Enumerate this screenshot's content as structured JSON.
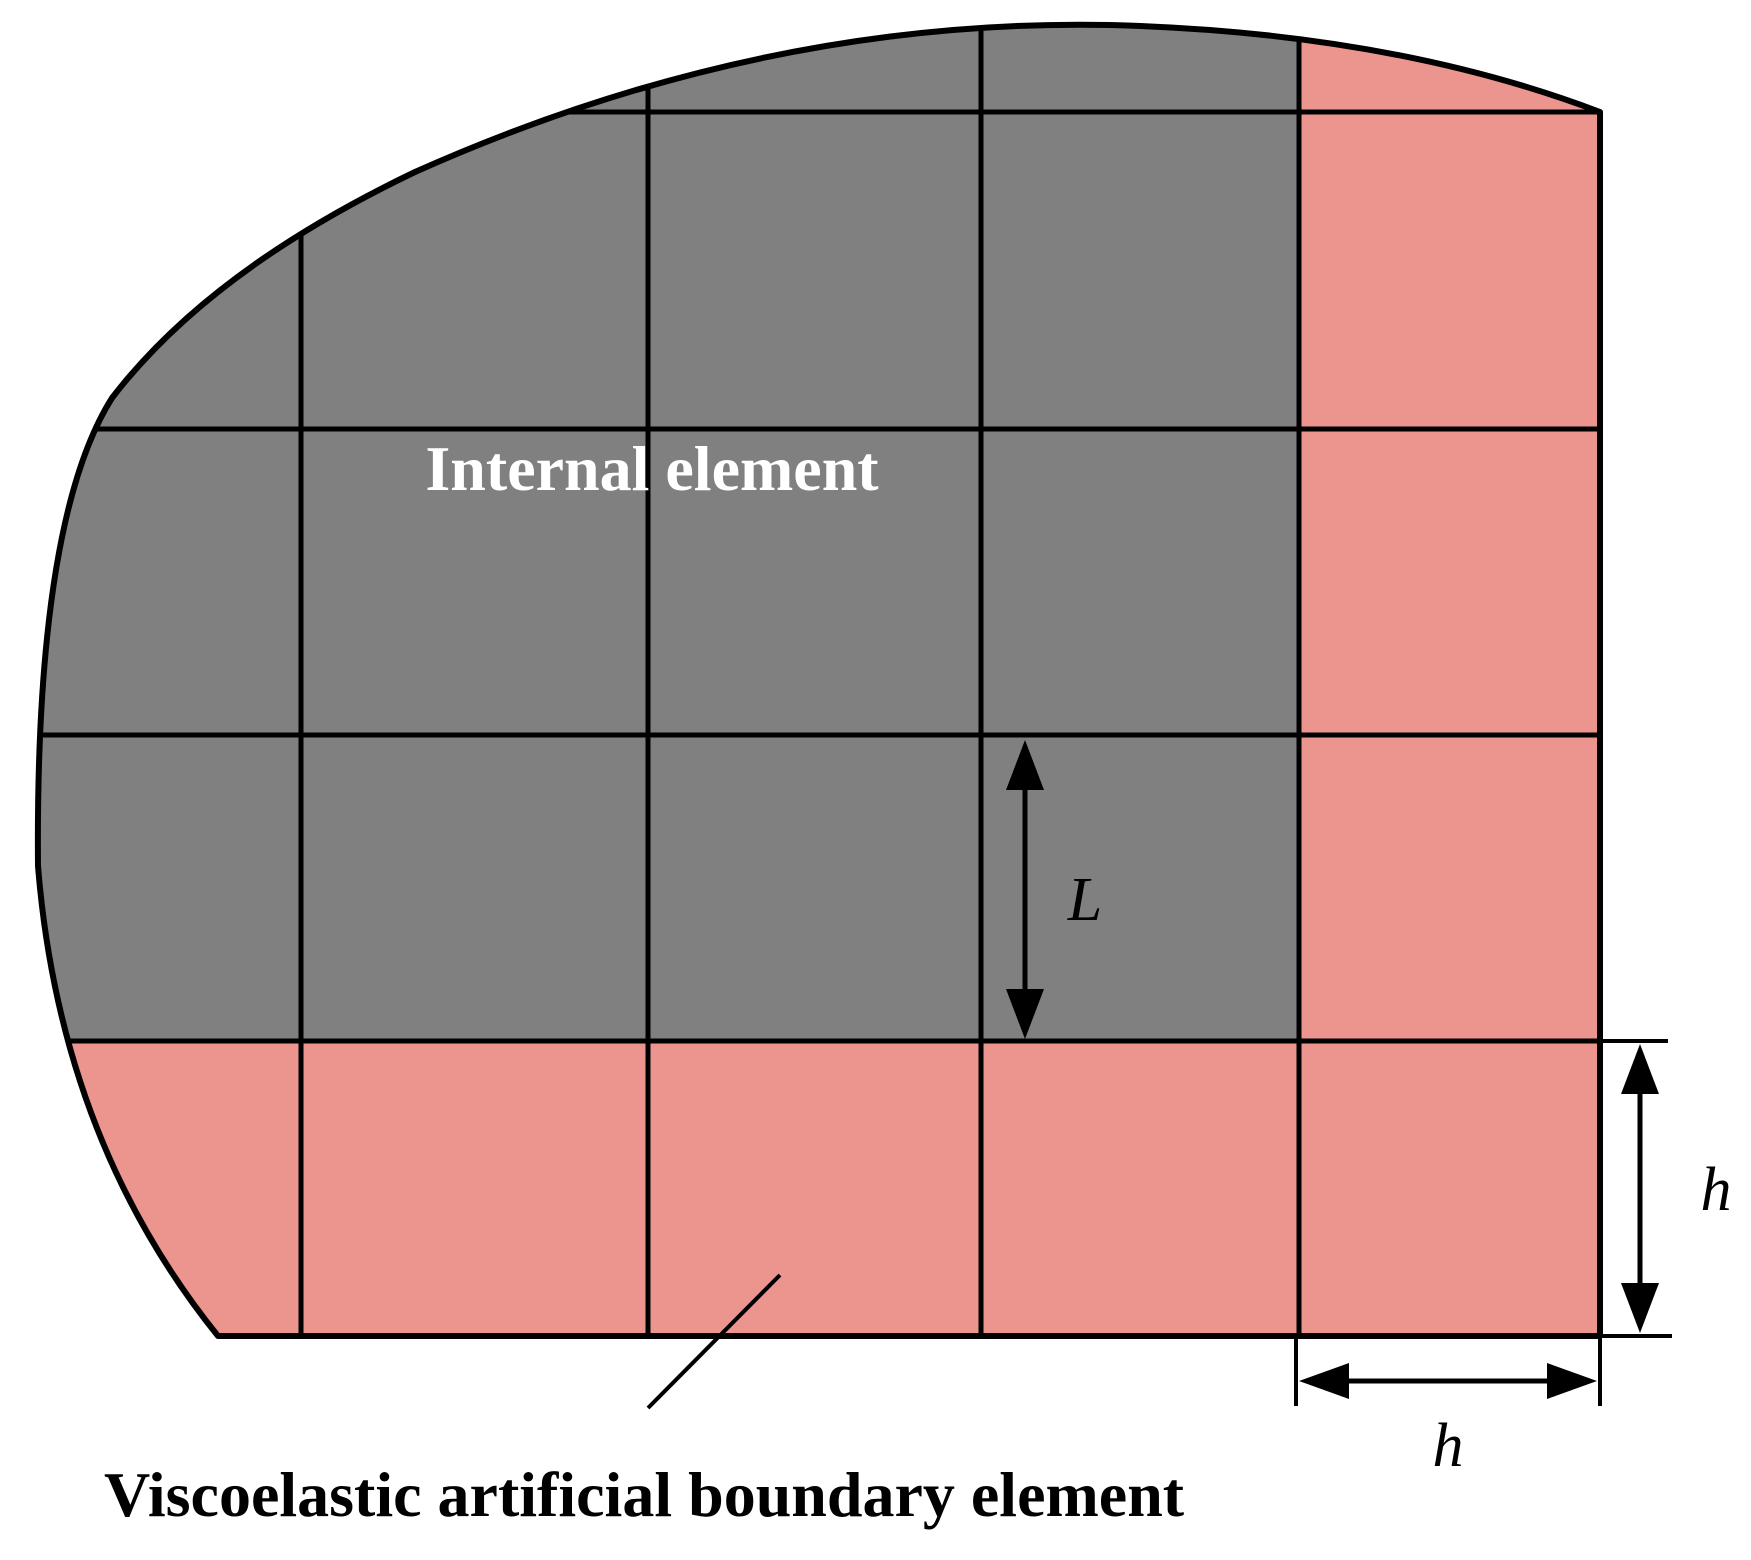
{
  "diagram": {
    "labels": {
      "internal": "Internal element",
      "boundary": "Viscoelastic artificial boundary element",
      "dim_L": "L",
      "dim_h_vertical": "h",
      "dim_h_horizontal": "h"
    },
    "colors": {
      "internal_fill": "#808080",
      "boundary_fill": "#EC958F",
      "line": "#000000",
      "internal_text": "#FFFFFF",
      "text": "#000000"
    }
  }
}
